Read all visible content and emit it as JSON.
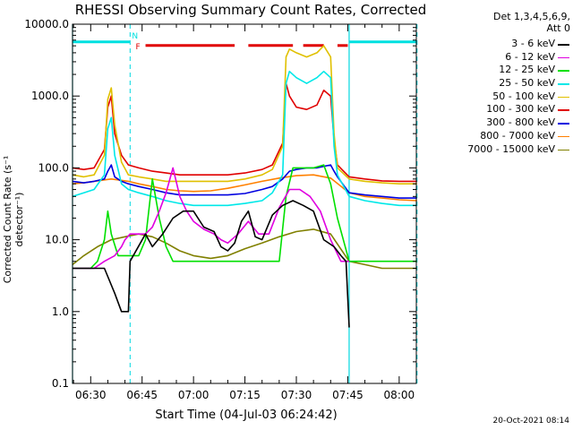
{
  "chart_data": {
    "type": "line",
    "title": "RHESSI Observing Summary Count Rates, Corrected",
    "xlabel": "Start Time (04-Jul-03 06:24:42)",
    "ylabel": "Corrected Count Rate (s⁻¹ detector⁻¹)",
    "detector_line1": "Det 1,3,4,5,6,9,",
    "detector_line2": "Att 0",
    "timestamp": "20-Oct-2021 08:14",
    "y_scale": "log",
    "ylim": [
      0.1,
      10000
    ],
    "xlim_min": [
      384.7,
      485
    ],
    "y_ticks": [
      {
        "v": 0.1,
        "label": "0.1"
      },
      {
        "v": 1,
        "label": "1.0"
      },
      {
        "v": 10,
        "label": "10.0"
      },
      {
        "v": 100,
        "label": "100.0"
      },
      {
        "v": 1000,
        "label": "1000.0"
      },
      {
        "v": 10000,
        "label": "10000.0"
      }
    ],
    "x_ticks": [
      {
        "min": 390,
        "label": "06:30"
      },
      {
        "min": 405,
        "label": "06:45"
      },
      {
        "min": 420,
        "label": "07:00"
      },
      {
        "min": 435,
        "label": "07:15"
      },
      {
        "min": 450,
        "label": "07:30"
      },
      {
        "min": 465,
        "label": "07:45"
      },
      {
        "min": 480,
        "label": "08:00"
      }
    ],
    "x_units": "minutes of day",
    "vlines_solid": [
      384.7,
      465.4
    ],
    "vlines_dashed": [
      401.5,
      485.2
    ],
    "flags": {
      "night": [
        [
          384.7,
          401.5
        ],
        [
          465.4,
          485.2
        ]
      ],
      "saa_flare": [
        [
          406.0,
          432.0
        ],
        [
          436.0,
          449.0
        ],
        [
          452.0,
          458.0
        ],
        [
          462.0,
          465.0
        ]
      ],
      "n_label": "N",
      "f_label": "F",
      "night_color": "#00e0e0",
      "flare_color": "#e00000",
      "flag_level": 6000
    },
    "series": [
      {
        "name": "3 - 6 keV",
        "color": "#000000",
        "x": [
          384.7,
          388,
          391,
          394,
          397,
          399,
          400,
          401,
          401.5,
          406,
          408,
          411,
          414,
          417,
          420,
          423,
          426,
          428,
          430,
          432,
          434,
          436,
          438,
          440,
          443,
          446,
          449,
          452,
          455,
          458,
          461,
          463,
          464.5,
          465.4
        ],
        "y": [
          4,
          4,
          4,
          4,
          1.8,
          1.0,
          1.0,
          1.0,
          5,
          12,
          8,
          12,
          20,
          25,
          25,
          15,
          13,
          8,
          7,
          9,
          18,
          25,
          11,
          10,
          22,
          30,
          35,
          30,
          25,
          10,
          8,
          6,
          5,
          0.6
        ]
      },
      {
        "name": "6 - 12 keV",
        "color": "#e000e0",
        "x": [
          384.7,
          388,
          391,
          394,
          397,
          399,
          400,
          401.5,
          403,
          406,
          408,
          410,
          412,
          414,
          416,
          418,
          420,
          423,
          426,
          428,
          430,
          433,
          436,
          439,
          442,
          445,
          448,
          451,
          454,
          457,
          460,
          463,
          465.4
        ],
        "y": [
          4,
          4,
          4,
          5,
          6,
          8,
          10,
          12,
          12,
          12,
          15,
          25,
          45,
          100,
          40,
          25,
          18,
          14,
          12,
          10,
          9,
          12,
          18,
          12,
          12,
          28,
          50,
          50,
          40,
          25,
          10,
          5,
          5
        ]
      },
      {
        "name": "12 - 25 keV",
        "color": "#00e000",
        "x": [
          384.7,
          386,
          388,
          390,
          392,
          394,
          395,
          396,
          398,
          400,
          401.5,
          404,
          406,
          408,
          410,
          412,
          414,
          416,
          418,
          420,
          422,
          425,
          430,
          435,
          440,
          445,
          447,
          449,
          452,
          455,
          458,
          460,
          462,
          465.4,
          468,
          472,
          476,
          480,
          485.2
        ],
        "y": [
          4,
          4,
          4,
          4,
          5,
          10,
          25,
          12,
          6,
          6,
          6,
          6,
          10,
          70,
          20,
          8,
          5,
          5,
          5,
          5,
          5,
          5,
          5,
          5,
          5,
          5,
          40,
          100,
          100,
          100,
          110,
          60,
          20,
          5,
          5,
          5,
          5,
          5,
          5
        ]
      },
      {
        "name": "25 - 50 keV",
        "color": "#00e8e8",
        "x": [
          384.7,
          388,
          391,
          394,
          395,
          396,
          397,
          399,
          401,
          404,
          408,
          412,
          416,
          420,
          425,
          430,
          435,
          440,
          443,
          446,
          447,
          448,
          450,
          453,
          456,
          458,
          460,
          461,
          462,
          465.4,
          470,
          475,
          480,
          485.2
        ],
        "y": [
          40,
          45,
          50,
          80,
          350,
          500,
          150,
          60,
          50,
          45,
          40,
          35,
          32,
          30,
          30,
          30,
          32,
          35,
          45,
          80,
          1500,
          2200,
          1800,
          1500,
          1800,
          2200,
          1800,
          200,
          80,
          40,
          35,
          32,
          30,
          30
        ]
      },
      {
        "name": "50 - 100 keV",
        "color": "#e0c000",
        "x": [
          384.7,
          388,
          391,
          394,
          395,
          396,
          397,
          399,
          401,
          404,
          408,
          412,
          416,
          420,
          425,
          430,
          435,
          440,
          443,
          446,
          447,
          448,
          450,
          453,
          456,
          458,
          460,
          461,
          462,
          465.4,
          470,
          475,
          480,
          485.2
        ],
        "y": [
          80,
          75,
          80,
          150,
          900,
          1300,
          400,
          120,
          80,
          75,
          70,
          65,
          65,
          65,
          65,
          65,
          70,
          80,
          95,
          200,
          3500,
          4500,
          4000,
          3500,
          4000,
          5000,
          3500,
          300,
          100,
          70,
          65,
          62,
          60,
          60
        ]
      },
      {
        "name": "100 - 300 keV",
        "color": "#e00000",
        "x": [
          384.7,
          388,
          391,
          394,
          395,
          396,
          397,
          399,
          401,
          404,
          408,
          412,
          416,
          420,
          425,
          430,
          435,
          440,
          443,
          446,
          447,
          448,
          450,
          453,
          456,
          458,
          460,
          461,
          462,
          465.4,
          470,
          475,
          480,
          485.2
        ],
        "y": [
          100,
          95,
          100,
          180,
          700,
          1000,
          300,
          150,
          110,
          100,
          90,
          85,
          80,
          80,
          80,
          80,
          85,
          95,
          110,
          220,
          1500,
          1000,
          700,
          650,
          750,
          1200,
          1000,
          250,
          110,
          75,
          70,
          66,
          65,
          65
        ]
      },
      {
        "name": "300 - 800 keV",
        "color": "#0000e0",
        "x": [
          384.7,
          388,
          391,
          394,
          395,
          396,
          397,
          399,
          401,
          404,
          408,
          412,
          416,
          420,
          425,
          430,
          435,
          440,
          443,
          446,
          448,
          450,
          453,
          456,
          458,
          460,
          461,
          462,
          465.4,
          470,
          475,
          480,
          485.2
        ],
        "y": [
          65,
          62,
          65,
          70,
          90,
          110,
          75,
          65,
          60,
          55,
          50,
          45,
          42,
          42,
          42,
          42,
          44,
          50,
          55,
          70,
          90,
          95,
          100,
          100,
          105,
          110,
          90,
          75,
          45,
          42,
          40,
          38,
          38
        ]
      },
      {
        "name": "800 - 7000 keV",
        "color": "#ff8000",
        "x": [
          384.7,
          388,
          391,
          394,
          396,
          398,
          401,
          404,
          408,
          412,
          416,
          420,
          425,
          430,
          435,
          440,
          445,
          450,
          455,
          460,
          465.4,
          470,
          475,
          480,
          485.2
        ],
        "y": [
          60,
          62,
          65,
          68,
          70,
          68,
          65,
          60,
          55,
          50,
          48,
          47,
          48,
          52,
          58,
          65,
          72,
          78,
          80,
          72,
          45,
          40,
          38,
          36,
          35
        ]
      },
      {
        "name": "7000 - 15000 keV",
        "color": "#808000",
        "x": [
          384.7,
          388,
          392,
          396,
          400,
          404,
          408,
          412,
          416,
          420,
          425,
          430,
          435,
          440,
          445,
          450,
          455,
          460,
          465.4,
          470,
          475,
          480,
          485.2
        ],
        "y": [
          4.5,
          6,
          8,
          10,
          11,
          12,
          11,
          9,
          7,
          6,
          5.5,
          6,
          7.5,
          9,
          11,
          13,
          14,
          12,
          5,
          4.5,
          4,
          4,
          4
        ]
      }
    ]
  }
}
